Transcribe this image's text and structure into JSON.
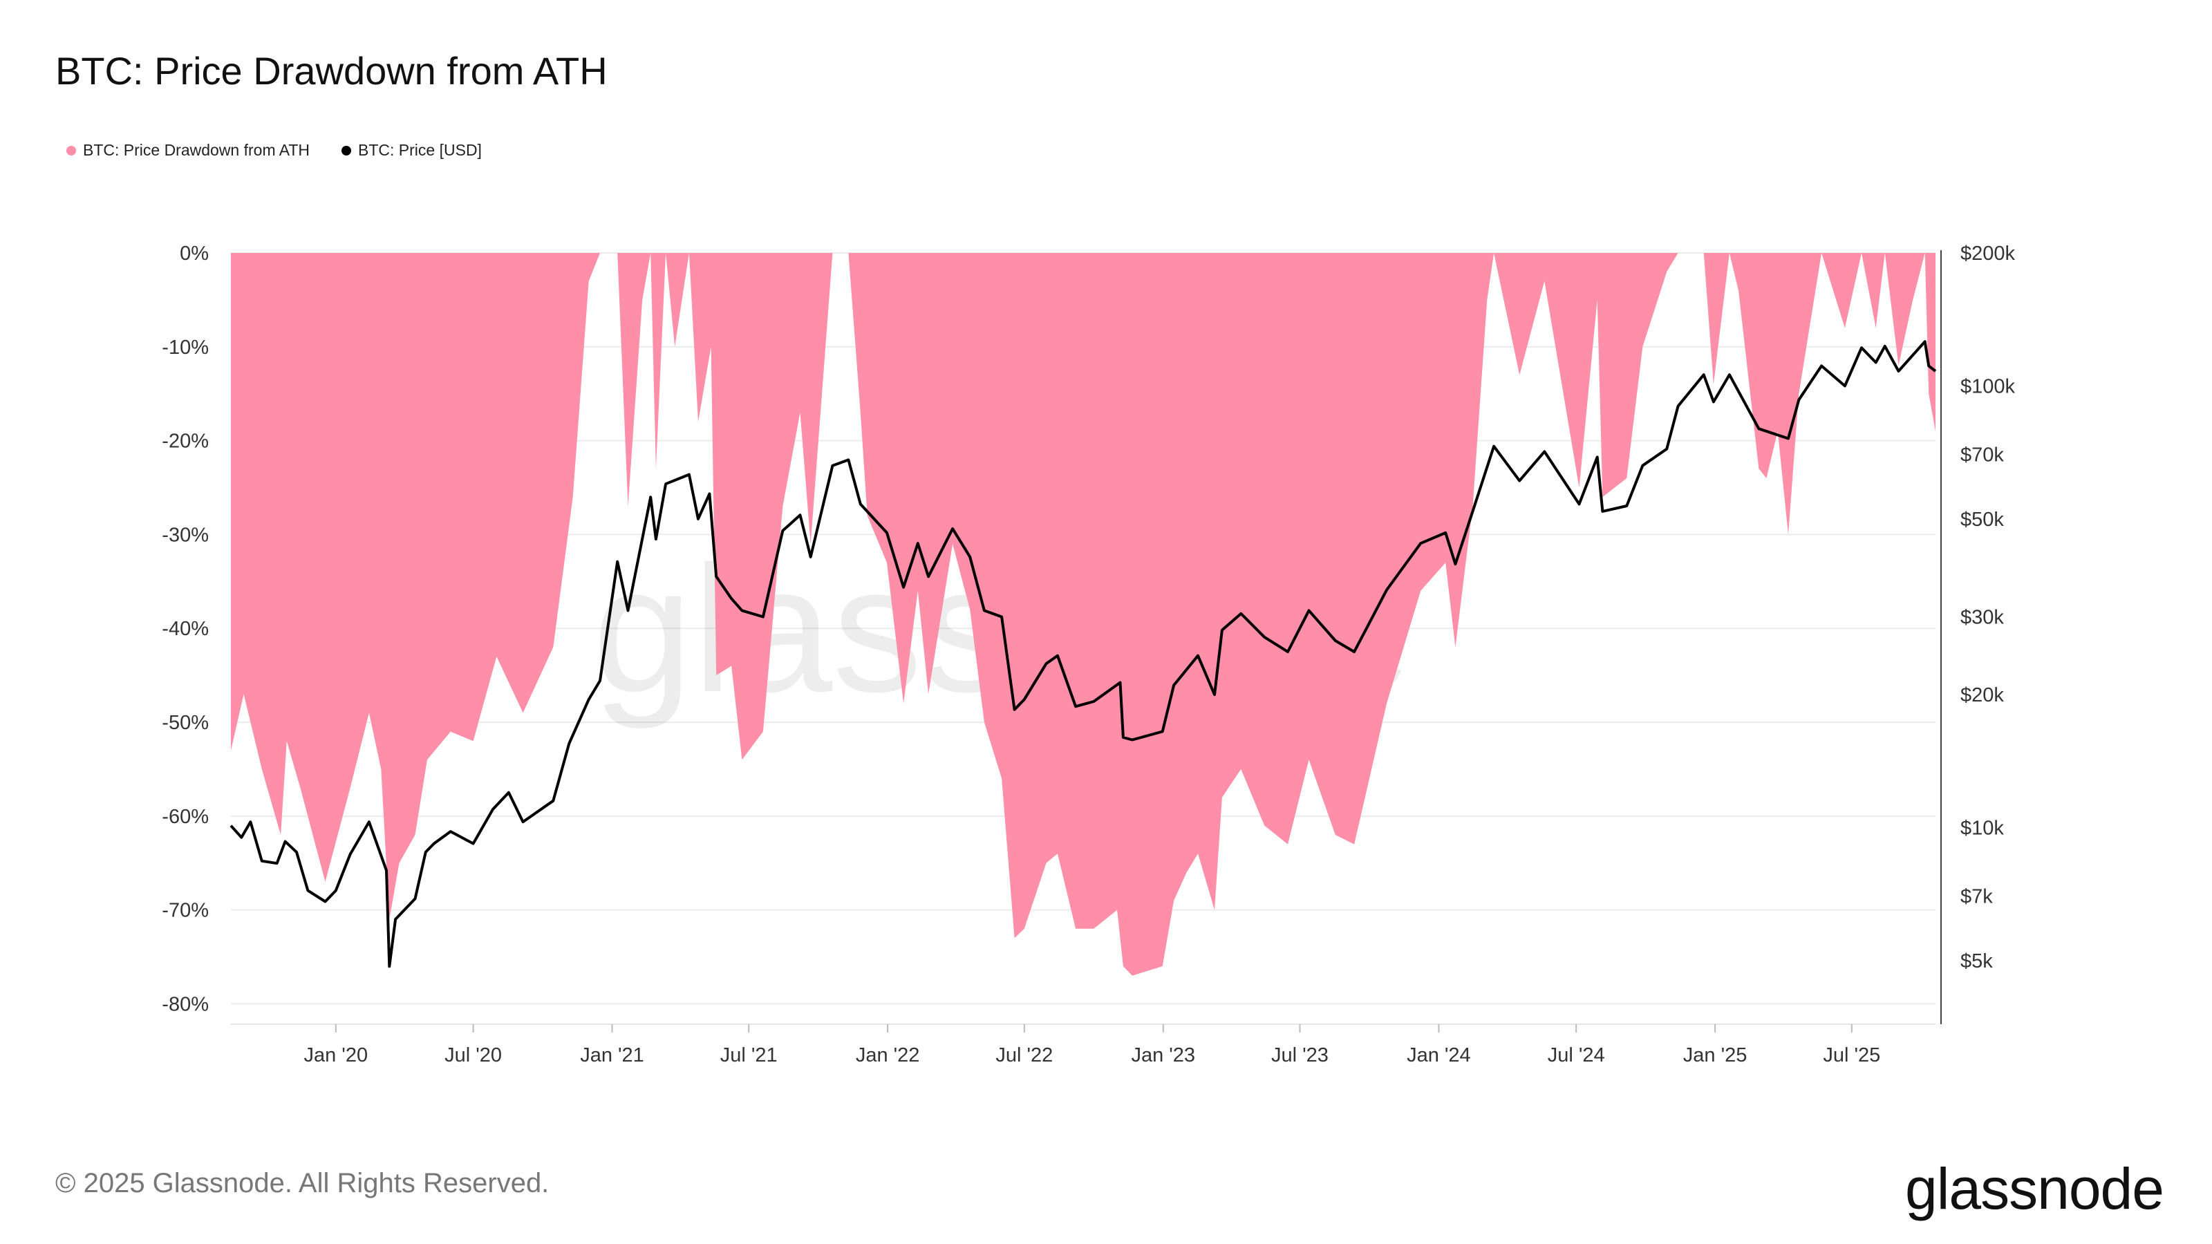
{
  "title": "BTC: Price Drawdown from ATH",
  "legend": [
    {
      "label": "BTC: Price Drawdown from ATH",
      "color": "#ff8fa8"
    },
    {
      "label": "BTC: Price [USD]",
      "color": "#000000"
    }
  ],
  "watermark": "glassnode",
  "footer": {
    "copyright": "© 2025 Glassnode. All Rights Reserved.",
    "logo": "glassnode"
  },
  "chart_data": {
    "type": "area",
    "title": "BTC: Price Drawdown from ATH",
    "x_tick_labels": [
      "Jan '20",
      "Jul '20",
      "Jan '21",
      "Jul '21",
      "Jan '22",
      "Jul '22",
      "Jan '23",
      "Jul '23",
      "Jan '24",
      "Jul '24",
      "Jan '25",
      "Jul '25"
    ],
    "x_ticks": [
      "2020-01-01",
      "2020-07-01",
      "2021-01-01",
      "2021-07-01",
      "2022-01-01",
      "2022-07-01",
      "2023-01-01",
      "2023-07-01",
      "2024-01-01",
      "2024-07-01",
      "2025-01-01",
      "2025-07-01"
    ],
    "x_range": [
      "2019-08-15",
      "2025-10-20"
    ],
    "y_left": {
      "ticks": [
        0,
        -10,
        -20,
        -30,
        -40,
        -50,
        -60,
        -70,
        -80
      ],
      "tick_labels": [
        "0%",
        "-10%",
        "-20%",
        "-30%",
        "-40%",
        "-50%",
        "-60%",
        "-70%",
        "-80%"
      ],
      "range": [
        -81,
        0
      ]
    },
    "y_right": {
      "scale": "log",
      "ticks": [
        200000,
        100000,
        70000,
        50000,
        30000,
        20000,
        10000,
        7000,
        5000
      ],
      "tick_labels": [
        "$200k",
        "$100k",
        "$70k",
        "$50k",
        "$30k",
        "$20k",
        "$10k",
        "$7k",
        "$5k"
      ],
      "range": [
        3800,
        200000
      ]
    },
    "grid": true,
    "legend_position": "top-left",
    "series": [
      {
        "name": "BTC: Price Drawdown from ATH",
        "axis": "left",
        "type": "area",
        "color": "#ff8fa8",
        "points": [
          [
            "2019-08-15",
            -53
          ],
          [
            "2019-09-01",
            -47
          ],
          [
            "2019-09-25",
            -55
          ],
          [
            "2019-10-20",
            -62
          ],
          [
            "2019-10-28",
            -52
          ],
          [
            "2019-11-15",
            -57
          ],
          [
            "2019-12-18",
            -67
          ],
          [
            "2020-01-20",
            -57
          ],
          [
            "2020-02-14",
            -49
          ],
          [
            "2020-03-01",
            -55
          ],
          [
            "2020-03-12",
            -71
          ],
          [
            "2020-03-25",
            -65
          ],
          [
            "2020-04-15",
            -62
          ],
          [
            "2020-05-01",
            -54
          ],
          [
            "2020-06-01",
            -51
          ],
          [
            "2020-07-01",
            -52
          ],
          [
            "2020-08-01",
            -43
          ],
          [
            "2020-09-05",
            -49
          ],
          [
            "2020-10-15",
            -42
          ],
          [
            "2020-11-10",
            -26
          ],
          [
            "2020-12-01",
            -3
          ],
          [
            "2020-12-16",
            0
          ],
          [
            "2021-01-08",
            0
          ],
          [
            "2021-01-22",
            -27
          ],
          [
            "2021-02-10",
            -5
          ],
          [
            "2021-02-21",
            0
          ],
          [
            "2021-02-28",
            -23
          ],
          [
            "2021-03-13",
            0
          ],
          [
            "2021-03-25",
            -10
          ],
          [
            "2021-04-13",
            0
          ],
          [
            "2021-04-25",
            -18
          ],
          [
            "2021-05-12",
            -10
          ],
          [
            "2021-05-19",
            -45
          ],
          [
            "2021-06-08",
            -44
          ],
          [
            "2021-06-22",
            -54
          ],
          [
            "2021-07-20",
            -51
          ],
          [
            "2021-08-15",
            -27
          ],
          [
            "2021-09-07",
            -17
          ],
          [
            "2021-09-21",
            -31
          ],
          [
            "2021-10-20",
            0
          ],
          [
            "2021-11-10",
            0
          ],
          [
            "2021-11-26",
            -17
          ],
          [
            "2021-12-05",
            -28
          ],
          [
            "2021-12-31",
            -33
          ],
          [
            "2022-01-22",
            -48
          ],
          [
            "2022-02-10",
            -36
          ],
          [
            "2022-02-24",
            -47
          ],
          [
            "2022-03-28",
            -31
          ],
          [
            "2022-04-20",
            -38
          ],
          [
            "2022-05-09",
            -50
          ],
          [
            "2022-06-01",
            -56
          ],
          [
            "2022-06-18",
            -73
          ],
          [
            "2022-07-01",
            -72
          ],
          [
            "2022-07-30",
            -65
          ],
          [
            "2022-08-14",
            -64
          ],
          [
            "2022-09-07",
            -72
          ],
          [
            "2022-10-01",
            -72
          ],
          [
            "2022-11-01",
            -70
          ],
          [
            "2022-11-09",
            -76
          ],
          [
            "2022-11-21",
            -77
          ],
          [
            "2022-12-31",
            -76
          ],
          [
            "2023-01-15",
            -69
          ],
          [
            "2023-02-01",
            -66
          ],
          [
            "2023-02-16",
            -64
          ],
          [
            "2023-03-10",
            -70
          ],
          [
            "2023-03-20",
            -58
          ],
          [
            "2023-04-14",
            -55
          ],
          [
            "2023-05-15",
            -61
          ],
          [
            "2023-06-15",
            -63
          ],
          [
            "2023-07-13",
            -54
          ],
          [
            "2023-08-17",
            -62
          ],
          [
            "2023-09-11",
            -63
          ],
          [
            "2023-10-24",
            -48
          ],
          [
            "2023-12-08",
            -36
          ],
          [
            "2024-01-10",
            -33
          ],
          [
            "2024-01-23",
            -42
          ],
          [
            "2024-02-15",
            -27
          ],
          [
            "2024-03-05",
            -5
          ],
          [
            "2024-03-14",
            0
          ],
          [
            "2024-04-17",
            -13
          ],
          [
            "2024-05-20",
            -3
          ],
          [
            "2024-07-05",
            -25
          ],
          [
            "2024-07-29",
            -5
          ],
          [
            "2024-08-05",
            -26
          ],
          [
            "2024-09-06",
            -24
          ],
          [
            "2024-09-27",
            -10
          ],
          [
            "2024-10-29",
            -2
          ],
          [
            "2024-11-13",
            0
          ],
          [
            "2024-12-17",
            0
          ],
          [
            "2024-12-30",
            -14
          ],
          [
            "2025-01-20",
            0
          ],
          [
            "2025-02-01",
            -4
          ],
          [
            "2025-02-28",
            -23
          ],
          [
            "2025-03-10",
            -24
          ],
          [
            "2025-03-25",
            -19
          ],
          [
            "2025-04-08",
            -30
          ],
          [
            "2025-04-22",
            -15
          ],
          [
            "2025-05-22",
            0
          ],
          [
            "2025-06-22",
            -8
          ],
          [
            "2025-07-14",
            0
          ],
          [
            "2025-08-02",
            -8
          ],
          [
            "2025-08-14",
            0
          ],
          [
            "2025-09-01",
            -12
          ],
          [
            "2025-09-20",
            -5
          ],
          [
            "2025-10-06",
            0
          ],
          [
            "2025-10-11",
            -15
          ],
          [
            "2025-10-20",
            -19
          ]
        ]
      },
      {
        "name": "BTC: Price [USD]",
        "axis": "right",
        "type": "line",
        "color": "#000000",
        "points": [
          [
            "2019-08-15",
            10100
          ],
          [
            "2019-08-29",
            9500
          ],
          [
            "2019-09-10",
            10300
          ],
          [
            "2019-09-25",
            8400
          ],
          [
            "2019-10-15",
            8300
          ],
          [
            "2019-10-26",
            9300
          ],
          [
            "2019-11-10",
            8800
          ],
          [
            "2019-11-25",
            7200
          ],
          [
            "2019-12-18",
            6800
          ],
          [
            "2020-01-01",
            7200
          ],
          [
            "2020-01-20",
            8700
          ],
          [
            "2020-02-14",
            10300
          ],
          [
            "2020-03-08",
            8000
          ],
          [
            "2020-03-12",
            4850
          ],
          [
            "2020-03-20",
            6200
          ],
          [
            "2020-04-15",
            6900
          ],
          [
            "2020-04-29",
            8800
          ],
          [
            "2020-05-10",
            9200
          ],
          [
            "2020-06-01",
            9800
          ],
          [
            "2020-07-01",
            9200
          ],
          [
            "2020-07-27",
            11000
          ],
          [
            "2020-08-17",
            12000
          ],
          [
            "2020-09-05",
            10300
          ],
          [
            "2020-10-15",
            11500
          ],
          [
            "2020-11-05",
            15500
          ],
          [
            "2020-12-01",
            19500
          ],
          [
            "2020-12-16",
            21500
          ],
          [
            "2021-01-08",
            40000
          ],
          [
            "2021-01-22",
            31000
          ],
          [
            "2021-02-21",
            56000
          ],
          [
            "2021-02-28",
            45000
          ],
          [
            "2021-03-13",
            60000
          ],
          [
            "2021-04-13",
            63000
          ],
          [
            "2021-04-25",
            50000
          ],
          [
            "2021-05-10",
            57000
          ],
          [
            "2021-05-19",
            37000
          ],
          [
            "2021-06-08",
            33000
          ],
          [
            "2021-06-22",
            31000
          ],
          [
            "2021-07-20",
            30000
          ],
          [
            "2021-08-15",
            47000
          ],
          [
            "2021-09-07",
            51000
          ],
          [
            "2021-09-21",
            41000
          ],
          [
            "2021-10-20",
            66000
          ],
          [
            "2021-11-10",
            68000
          ],
          [
            "2021-11-26",
            54000
          ],
          [
            "2021-12-31",
            46500
          ],
          [
            "2022-01-22",
            35000
          ],
          [
            "2022-02-10",
            44000
          ],
          [
            "2022-02-24",
            37000
          ],
          [
            "2022-03-28",
            47500
          ],
          [
            "2022-04-20",
            41000
          ],
          [
            "2022-05-09",
            31000
          ],
          [
            "2022-06-01",
            30000
          ],
          [
            "2022-06-18",
            18500
          ],
          [
            "2022-07-01",
            19500
          ],
          [
            "2022-07-30",
            23500
          ],
          [
            "2022-08-14",
            24500
          ],
          [
            "2022-09-07",
            18800
          ],
          [
            "2022-10-01",
            19300
          ],
          [
            "2022-11-05",
            21300
          ],
          [
            "2022-11-09",
            16000
          ],
          [
            "2022-11-21",
            15800
          ],
          [
            "2022-12-31",
            16500
          ],
          [
            "2023-01-15",
            21000
          ],
          [
            "2023-02-16",
            24500
          ],
          [
            "2023-03-10",
            20000
          ],
          [
            "2023-03-20",
            28000
          ],
          [
            "2023-04-14",
            30500
          ],
          [
            "2023-05-15",
            27000
          ],
          [
            "2023-06-15",
            25000
          ],
          [
            "2023-07-13",
            31000
          ],
          [
            "2023-08-17",
            26500
          ],
          [
            "2023-09-11",
            25000
          ],
          [
            "2023-10-24",
            34500
          ],
          [
            "2023-12-08",
            44000
          ],
          [
            "2024-01-10",
            46500
          ],
          [
            "2024-01-23",
            39500
          ],
          [
            "2024-02-15",
            52000
          ],
          [
            "2024-03-14",
            73000
          ],
          [
            "2024-04-17",
            61000
          ],
          [
            "2024-05-20",
            71000
          ],
          [
            "2024-07-05",
            54000
          ],
          [
            "2024-07-29",
            69000
          ],
          [
            "2024-08-05",
            52000
          ],
          [
            "2024-09-06",
            53500
          ],
          [
            "2024-09-27",
            66000
          ],
          [
            "2024-10-29",
            72000
          ],
          [
            "2024-11-13",
            90000
          ],
          [
            "2024-12-17",
            106000
          ],
          [
            "2024-12-30",
            92000
          ],
          [
            "2025-01-20",
            106000
          ],
          [
            "2025-02-28",
            80000
          ],
          [
            "2025-04-08",
            76000
          ],
          [
            "2025-04-22",
            93000
          ],
          [
            "2025-05-22",
            111000
          ],
          [
            "2025-06-22",
            100000
          ],
          [
            "2025-07-14",
            122000
          ],
          [
            "2025-08-02",
            113000
          ],
          [
            "2025-08-14",
            123000
          ],
          [
            "2025-09-01",
            108000
          ],
          [
            "2025-10-06",
            126000
          ],
          [
            "2025-10-11",
            111000
          ],
          [
            "2025-10-20",
            108000
          ]
        ]
      }
    ]
  }
}
